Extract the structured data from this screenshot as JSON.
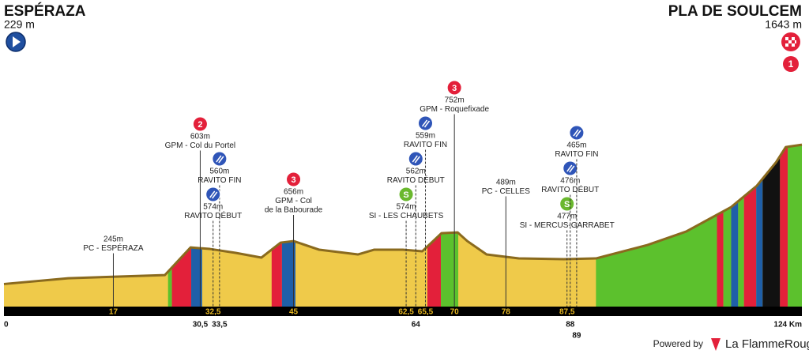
{
  "chart_data": {
    "type": "profile",
    "start_name": "ESPÉRAZA",
    "start_altitude": "229 m",
    "finish_name": "PLA DE SOULCEM",
    "finish_altitude": "1643 m",
    "finish_badge": "1",
    "x": [
      0,
      10,
      25,
      29,
      32,
      36,
      40,
      43,
      45,
      49,
      55,
      57.5,
      62,
      65,
      68,
      70.5,
      72,
      75,
      80,
      87,
      92,
      100,
      106,
      113,
      117,
      120,
      121.5,
      124
    ],
    "values": [
      229,
      288,
      320,
      600,
      585,
      545,
      497,
      649,
      665,
      577,
      529,
      577,
      577,
      561,
      745,
      753,
      665,
      529,
      489,
      481,
      489,
      625,
      761,
      1010,
      1226,
      1466,
      1619,
      1643
    ],
    "xlim": [
      0,
      124
    ],
    "ylim": [
      0,
      1700
    ],
    "fill_color": "#efca4a",
    "outline_color": "#8a6a1e",
    "bands": [
      {
        "from": 25.5,
        "to": 26.1,
        "color": "#5cc12d"
      },
      {
        "from": 26.1,
        "to": 29.1,
        "color": "#e3203a"
      },
      {
        "from": 29.1,
        "to": 30.8,
        "color": "#1f5fa8"
      },
      {
        "from": 41.6,
        "to": 43.2,
        "color": "#e3203a"
      },
      {
        "from": 43.2,
        "to": 45.3,
        "color": "#1f5fa8"
      },
      {
        "from": 65.8,
        "to": 67.9,
        "color": "#e3203a"
      },
      {
        "from": 67.9,
        "to": 70.6,
        "color": "#5cc12d"
      },
      {
        "from": 92,
        "to": 110.8,
        "color": "#5cc12d"
      },
      {
        "from": 110.8,
        "to": 111.8,
        "color": "#e3203a"
      },
      {
        "from": 111.8,
        "to": 113,
        "color": "#5cc12d"
      },
      {
        "from": 113,
        "to": 114.1,
        "color": "#1f5fa8"
      },
      {
        "from": 114.1,
        "to": 115,
        "color": "#5cc12d"
      },
      {
        "from": 115,
        "to": 116.9,
        "color": "#e3203a"
      },
      {
        "from": 116.9,
        "to": 117.9,
        "color": "#1f5fa8"
      },
      {
        "from": 117.9,
        "to": 120.6,
        "color": "#111111"
      },
      {
        "from": 120.6,
        "to": 121.8,
        "color": "#e3203a"
      },
      {
        "from": 121.8,
        "to": 124,
        "color": "#5cc12d"
      }
    ],
    "km_in_bar": [
      17,
      {
        "value": 32.5,
        "label": "32,5"
      },
      45,
      {
        "value": 62.5,
        "label": "62,5"
      },
      {
        "value": 65.5,
        "label": "65,5"
      },
      70,
      78,
      {
        "value": 87.5,
        "label": "87,5"
      }
    ],
    "km_below": [
      0,
      {
        "value": 30.5,
        "label": "30,5"
      },
      {
        "value": 33.5,
        "label": "33,5"
      },
      64,
      88
    ],
    "km_below_low": [
      89
    ],
    "km_end": {
      "value": 124,
      "label": "124 Km"
    },
    "markers": [
      {
        "km": 17,
        "altitude": "245m",
        "lines": [
          "PC - ESPÉRAZA"
        ]
      },
      {
        "km": 30.5,
        "icon": "climb",
        "badge": "2",
        "altitude": "603m",
        "lines": [
          "GPM - Col du Portel"
        ]
      },
      {
        "km": 33.5,
        "icon": "ravito",
        "altitude": "560m",
        "lines": [
          "RAVITO FIN"
        ]
      },
      {
        "km": 32.5,
        "icon": "ravito",
        "altitude": "574m",
        "lines": [
          "RAVITO DÉBUT"
        ]
      },
      {
        "km": 45,
        "icon": "climb",
        "badge": "3",
        "altitude": "656m",
        "lines": [
          "GPM - Col",
          "de la Babourade"
        ]
      },
      {
        "km": 62.5,
        "icon": "sprint",
        "badge": "S",
        "altitude": "574m",
        "lines": [
          "SI - LES CHAUBETS"
        ]
      },
      {
        "km": 64,
        "icon": "ravito",
        "altitude": "562m",
        "lines": [
          "RAVITO DÉBUT"
        ]
      },
      {
        "km": 65.5,
        "icon": "ravito",
        "altitude": "559m",
        "lines": [
          "RAVITO FIN"
        ]
      },
      {
        "km": 70,
        "icon": "climb",
        "badge": "3",
        "altitude": "752m",
        "lines": [
          "GPM - Roquefixade"
        ]
      },
      {
        "km": 78,
        "altitude": "489m",
        "lines": [
          "PC - CELLES"
        ]
      },
      {
        "km": 87.5,
        "icon": "sprint",
        "badge": "S",
        "altitude": "477m",
        "lines": [
          "SI - MERCUS-GARRABET"
        ]
      },
      {
        "km": 88,
        "icon": "ravito",
        "altitude": "476m",
        "lines": [
          "RAVITO DÉBUT"
        ]
      },
      {
        "km": 89,
        "icon": "ravito",
        "altitude": "465m",
        "lines": [
          "RAVITO FIN"
        ]
      }
    ]
  },
  "footer": {
    "powered": "Powered by",
    "brand": "La FlammeRouge"
  }
}
